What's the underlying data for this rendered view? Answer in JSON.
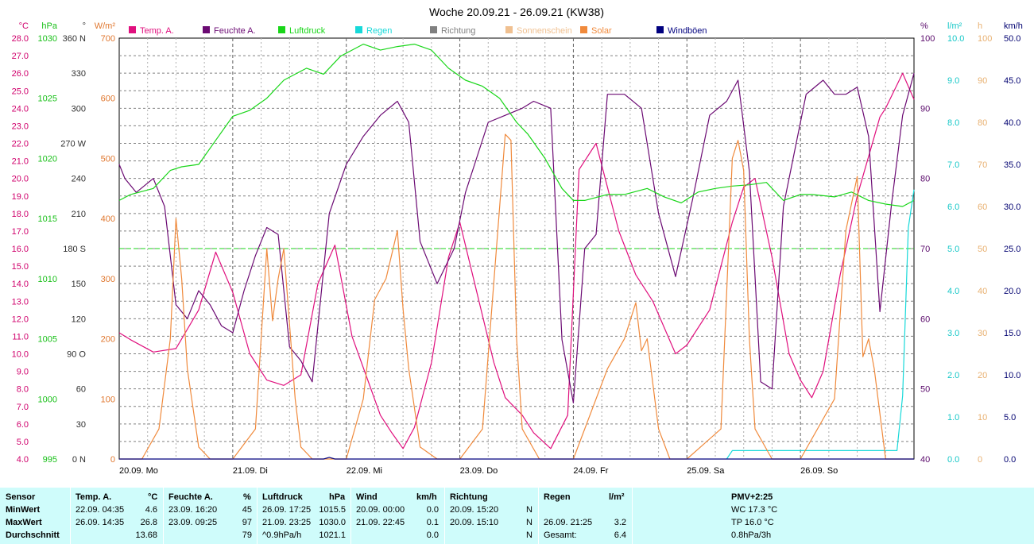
{
  "chart_data": {
    "type": "line",
    "title": "Woche 20.09.21 - 26.09.21 (KW38)",
    "legend": [
      {
        "label": "Temp. A.",
        "color": "#e0107e"
      },
      {
        "label": "Feuchte A.",
        "color": "#6b0a73"
      },
      {
        "label": "Luftdruck",
        "color": "#19d619"
      },
      {
        "label": "Regen",
        "color": "#17d9d9"
      },
      {
        "label": "Richtung",
        "color": "#808080"
      },
      {
        "label": "Sonnenschein",
        "color": "#f0c090"
      },
      {
        "label": "Solar",
        "color": "#f08a3c"
      },
      {
        "label": "Windböen",
        "color": "#00007f"
      }
    ],
    "x_days": [
      "20.09. Mo",
      "21.09. Di",
      "22.09. Mi",
      "23.09. Do",
      "24.09. Fr",
      "25.09. Sa",
      "26.09. So"
    ],
    "axes": {
      "temp": {
        "unit": "°C",
        "color": "#d0006c",
        "ticks": [
          "28.0",
          "27.0",
          "26.0",
          "25.0",
          "24.0",
          "23.0",
          "22.0",
          "21.0",
          "20.0",
          "19.0",
          "18.0",
          "17.0",
          "16.0",
          "15.0",
          "14.0",
          "13.0",
          "12.0",
          "11.0",
          "10.0",
          "9.0",
          "8.0",
          "7.0",
          "6.0",
          "5.0",
          "4.0"
        ]
      },
      "pressure": {
        "unit": "hPa",
        "color": "#19c019",
        "ticks": [
          "1030",
          "1025",
          "1020",
          "1015",
          "1010",
          "1005",
          "1000",
          "995"
        ]
      },
      "direction": {
        "unit": "°",
        "ticks": [
          "360 N",
          "330",
          "300",
          "270 W",
          "240",
          "210",
          "180 S",
          "150",
          "120",
          "90 O",
          "60",
          "30",
          "0 N"
        ]
      },
      "solar": {
        "unit": "W/m²",
        "color": "#e07830",
        "ticks": [
          "700",
          "600",
          "500",
          "400",
          "300",
          "200",
          "100",
          "0"
        ]
      },
      "humidity": {
        "unit": "%",
        "color": "#5a0a6b",
        "ticks": [
          "100",
          "90",
          "80",
          "70",
          "60",
          "50",
          "40"
        ]
      },
      "rain": {
        "unit": "l/m²",
        "color": "#17c8c8",
        "ticks": [
          "10.0",
          "9.0",
          "8.0",
          "7.0",
          "6.0",
          "5.0",
          "4.0",
          "3.0",
          "2.0",
          "1.0",
          "0.0"
        ]
      },
      "sunhours": {
        "unit": "h",
        "color": "#e8b070",
        "ticks": [
          "100",
          "90",
          "80",
          "70",
          "60",
          "50",
          "40",
          "30",
          "20",
          "10",
          "0"
        ]
      },
      "wind": {
        "unit": "km/h",
        "color": "#000070",
        "ticks": [
          "50.0",
          "45.0",
          "40.0",
          "35.0",
          "30.0",
          "25.0",
          "20.0",
          "15.0",
          "10.0",
          "5.0",
          "0.0"
        ]
      }
    },
    "series": [
      {
        "name": "Temp. A.",
        "axis": "temp",
        "x": [
          0,
          0.1,
          0.3,
          0.5,
          0.7,
          0.85,
          1.0,
          1.15,
          1.3,
          1.45,
          1.6,
          1.75,
          1.9,
          2.05,
          2.2,
          2.3,
          2.4,
          2.5,
          2.6,
          2.75,
          2.9,
          3.0,
          3.15,
          3.3,
          3.4,
          3.55,
          3.65,
          3.8,
          3.95,
          4.05,
          4.2,
          4.4,
          4.55,
          4.7,
          4.9,
          5.0,
          5.2,
          5.4,
          5.5,
          5.6,
          5.75,
          5.9,
          6.0,
          6.1,
          6.2,
          6.35,
          6.5,
          6.7,
          6.75,
          6.9,
          7.0
        ],
        "y": [
          11.2,
          10.8,
          10.1,
          10.3,
          12.5,
          15.8,
          13.5,
          10.0,
          8.5,
          8.2,
          8.8,
          14.0,
          16.2,
          11.0,
          8.3,
          6.5,
          5.5,
          4.6,
          5.8,
          9.5,
          15.5,
          17.5,
          13.5,
          9.5,
          7.5,
          6.5,
          5.5,
          4.6,
          6.5,
          20.5,
          22.0,
          17.0,
          14.5,
          13.0,
          10.0,
          10.5,
          12.5,
          17.5,
          19.5,
          20.0,
          15.5,
          10.0,
          8.5,
          7.5,
          9.0,
          14.5,
          19.0,
          23.5,
          24.0,
          26.0,
          24.5
        ]
      },
      {
        "name": "Feuchte A.",
        "axis": "humidity",
        "x": [
          0,
          0.05,
          0.15,
          0.3,
          0.4,
          0.5,
          0.6,
          0.7,
          0.8,
          0.9,
          1.0,
          1.1,
          1.2,
          1.3,
          1.4,
          1.5,
          1.6,
          1.7,
          1.85,
          2.0,
          2.15,
          2.3,
          2.45,
          2.55,
          2.65,
          2.8,
          2.95,
          3.05,
          3.25,
          3.4,
          3.55,
          3.65,
          3.8,
          3.9,
          4.0,
          4.1,
          4.2,
          4.3,
          4.45,
          4.6,
          4.75,
          4.9,
          5.05,
          5.2,
          5.35,
          5.45,
          5.55,
          5.65,
          5.75,
          5.85,
          5.95,
          6.05,
          6.2,
          6.3,
          6.4,
          6.5,
          6.6,
          6.7,
          6.8,
          6.9,
          7.0
        ],
        "y": [
          82,
          80,
          78,
          80,
          76,
          62,
          60,
          64,
          62,
          59,
          58,
          64,
          69,
          73,
          72,
          56,
          54,
          51,
          75,
          82,
          86,
          89,
          91,
          88,
          71,
          65,
          70,
          78,
          88,
          89,
          90,
          91,
          90,
          57,
          48,
          70,
          72,
          92,
          92,
          90,
          75,
          66,
          77,
          89,
          91,
          94,
          81,
          51,
          50,
          76,
          84,
          92,
          94,
          92,
          92,
          93,
          86,
          61,
          76,
          89,
          95
        ]
      },
      {
        "name": "Luftdruck",
        "axis": "pressure",
        "x": [
          0,
          0.1,
          0.3,
          0.45,
          0.55,
          0.7,
          0.85,
          1.0,
          1.15,
          1.3,
          1.45,
          1.55,
          1.65,
          1.8,
          1.95,
          2.05,
          2.15,
          2.3,
          2.45,
          2.6,
          2.75,
          2.9,
          3.05,
          3.2,
          3.35,
          3.5,
          3.6,
          3.75,
          3.9,
          4.0,
          4.1,
          4.3,
          4.45,
          4.65,
          4.8,
          4.95,
          5.1,
          5.25,
          5.4,
          5.55,
          5.7,
          5.85,
          6.0,
          6.1,
          6.3,
          6.45,
          6.6,
          6.75,
          6.9,
          7.0
        ],
        "y": [
          1016.5,
          1017.0,
          1017.5,
          1019.0,
          1019.3,
          1019.5,
          1021.5,
          1023.5,
          1024.0,
          1025.0,
          1026.5,
          1027.0,
          1027.5,
          1027.0,
          1028.5,
          1029.0,
          1029.5,
          1029.0,
          1029.3,
          1029.5,
          1029.0,
          1027.5,
          1026.5,
          1026.0,
          1025.0,
          1023.0,
          1022.0,
          1020.0,
          1017.5,
          1016.5,
          1016.5,
          1017.0,
          1017.0,
          1017.5,
          1016.8,
          1016.3,
          1017.2,
          1017.5,
          1017.7,
          1017.8,
          1018.0,
          1016.5,
          1017.0,
          1017.0,
          1016.8,
          1017.2,
          1016.5,
          1016.2,
          1016.0,
          1016.5
        ]
      },
      {
        "name": "Regen",
        "axis": "rain",
        "x": [
          5.35,
          5.4,
          6.85,
          6.9,
          6.95,
          7.0
        ],
        "y": [
          0,
          0.2,
          0.2,
          1.5,
          5.5,
          6.4
        ]
      },
      {
        "name": "Solar",
        "axis": "solar",
        "x": [
          0,
          0.2,
          0.35,
          0.45,
          0.5,
          0.55,
          0.6,
          0.7,
          0.8,
          1.0,
          1.2,
          1.3,
          1.35,
          1.4,
          1.45,
          1.55,
          1.6,
          1.7,
          2.0,
          2.15,
          2.25,
          2.35,
          2.45,
          2.5,
          2.55,
          2.65,
          2.8,
          3.0,
          3.2,
          3.4,
          3.45,
          3.5,
          3.55,
          3.7,
          3.8,
          4.0,
          4.3,
          4.45,
          4.55,
          4.6,
          4.65,
          4.75,
          4.85,
          5.0,
          5.3,
          5.4,
          5.45,
          5.5,
          5.55,
          5.6,
          5.75,
          6.0,
          6.3,
          6.4,
          6.5,
          6.55,
          6.6,
          6.65,
          6.75,
          6.9,
          7.0
        ],
        "y": [
          0,
          0,
          50,
          200,
          400,
          300,
          150,
          20,
          0,
          0,
          50,
          350,
          230,
          300,
          350,
          100,
          20,
          0,
          0,
          100,
          265,
          300,
          380,
          250,
          150,
          20,
          0,
          0,
          50,
          540,
          530,
          200,
          50,
          0,
          0,
          0,
          150,
          200,
          260,
          180,
          200,
          50,
          0,
          0,
          50,
          500,
          530,
          480,
          200,
          50,
          0,
          0,
          100,
          380,
          470,
          170,
          200,
          150,
          0,
          0,
          0
        ]
      },
      {
        "name": "Windböen",
        "axis": "wind",
        "x": [
          0,
          1.8,
          1.85,
          1.9,
          7.0
        ],
        "y": [
          0,
          0,
          0.2,
          0,
          0
        ]
      }
    ],
    "reference_line": {
      "axis": "direction",
      "value": 180
    },
    "grid": true
  },
  "stats": {
    "headers": {
      "sensor": "Sensor",
      "temp": "Temp. A.",
      "temp_unit": "°C",
      "humidity": "Feuchte A.",
      "humidity_unit": "%",
      "pressure": "Luftdruck",
      "pressure_unit": "hPa",
      "wind": "Wind",
      "wind_unit": "km/h",
      "direction": "Richtung",
      "rain": "Regen",
      "rain_unit": "l/m²",
      "pmv": "PMV+2:25"
    },
    "rows": [
      {
        "label": "MinWert",
        "t_time": "22.09.  04:35",
        "t_val": "4.6",
        "h_time": "23.09.  16:20",
        "h_val": "45",
        "p_time": "26.09.  17:25",
        "p_val": "1015.5",
        "w_time": "20.09.  00:00",
        "w_val": "0.0",
        "d_time": "20.09.  15:20",
        "d_val": "N",
        "r_time": "",
        "r_val": "",
        "extra": "WC 17.3 °C"
      },
      {
        "label": "MaxWert",
        "t_time": "26.09.  14:35",
        "t_val": "26.8",
        "h_time": "23.09.  09:25",
        "h_val": "97",
        "p_time": "21.09.  23:25",
        "p_val": "1030.0",
        "w_time": "21.09.  22:45",
        "w_val": "0.1",
        "d_time": "20.09.  15:10",
        "d_val": "N",
        "r_time": "26.09.  21:25",
        "r_val": "3.2",
        "extra": "TP 16.0 °C"
      },
      {
        "label": "Durchschnitt",
        "t_time": "",
        "t_val": "13.68",
        "h_time": "",
        "h_val": "79",
        "p_time": "^0.9hPa/h",
        "p_val": "1021.1",
        "w_time": "",
        "w_val": "0.0",
        "d_time": "",
        "d_val": "N",
        "r_time": "Gesamt:",
        "r_val": "6.4",
        "extra": "0.8hPa/3h"
      }
    ]
  }
}
